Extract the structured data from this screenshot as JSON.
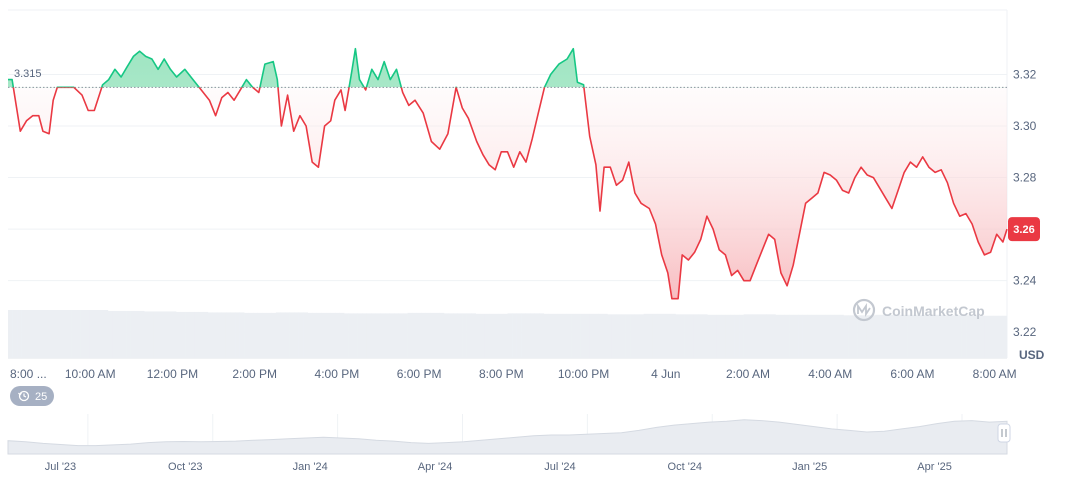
{
  "chart_data": {
    "type": "area",
    "title": "",
    "unit_label": "USD",
    "baseline": 3.315,
    "baseline_label": "3.315",
    "current_value": 3.26,
    "current_label": "3.26",
    "ylim": [
      3.21,
      3.345
    ],
    "y_ticks": [
      {
        "value": 3.32,
        "label": "3.32"
      },
      {
        "value": 3.3,
        "label": "3.30"
      },
      {
        "value": 3.28,
        "label": "3.28"
      },
      {
        "value": 3.26,
        "label": "3.26"
      },
      {
        "value": 3.24,
        "label": "3.24"
      },
      {
        "value": 3.22,
        "label": "3.22"
      }
    ],
    "x_range": [
      8,
      32.3
    ],
    "x_ticks": [
      {
        "value": 8,
        "label": "8:00 ..."
      },
      {
        "value": 10,
        "label": "10:00 AM"
      },
      {
        "value": 12,
        "label": "12:00 PM"
      },
      {
        "value": 14,
        "label": "2:00 PM"
      },
      {
        "value": 16,
        "label": "4:00 PM"
      },
      {
        "value": 18,
        "label": "6:00 PM"
      },
      {
        "value": 20,
        "label": "8:00 PM"
      },
      {
        "value": 22,
        "label": "10:00 PM"
      },
      {
        "value": 24,
        "label": "4 Jun"
      },
      {
        "value": 26,
        "label": "2:00 AM"
      },
      {
        "value": 28,
        "label": "4:00 AM"
      },
      {
        "value": 30,
        "label": "6:00 AM"
      },
      {
        "value": 32,
        "label": "8:00 AM"
      }
    ],
    "price_series": [
      [
        8.0,
        3.318
      ],
      [
        8.1,
        3.318
      ],
      [
        8.2,
        3.308
      ],
      [
        8.3,
        3.298
      ],
      [
        8.45,
        3.302
      ],
      [
        8.6,
        3.304
      ],
      [
        8.75,
        3.304
      ],
      [
        8.85,
        3.298
      ],
      [
        9.0,
        3.297
      ],
      [
        9.1,
        3.31
      ],
      [
        9.2,
        3.315
      ],
      [
        9.4,
        3.315
      ],
      [
        9.6,
        3.315
      ],
      [
        9.8,
        3.312
      ],
      [
        9.95,
        3.306
      ],
      [
        10.1,
        3.306
      ],
      [
        10.3,
        3.316
      ],
      [
        10.45,
        3.318
      ],
      [
        10.6,
        3.322
      ],
      [
        10.75,
        3.319
      ],
      [
        10.9,
        3.323
      ],
      [
        11.05,
        3.327
      ],
      [
        11.2,
        3.329
      ],
      [
        11.35,
        3.327
      ],
      [
        11.5,
        3.326
      ],
      [
        11.65,
        3.322
      ],
      [
        11.8,
        3.326
      ],
      [
        11.95,
        3.322
      ],
      [
        12.1,
        3.319
      ],
      [
        12.3,
        3.322
      ],
      [
        12.5,
        3.318
      ],
      [
        12.7,
        3.314
      ],
      [
        12.9,
        3.31
      ],
      [
        13.05,
        3.304
      ],
      [
        13.2,
        3.311
      ],
      [
        13.35,
        3.313
      ],
      [
        13.5,
        3.31
      ],
      [
        13.65,
        3.314
      ],
      [
        13.8,
        3.318
      ],
      [
        13.95,
        3.315
      ],
      [
        14.1,
        3.313
      ],
      [
        14.25,
        3.324
      ],
      [
        14.45,
        3.325
      ],
      [
        14.55,
        3.318
      ],
      [
        14.65,
        3.3
      ],
      [
        14.8,
        3.312
      ],
      [
        14.95,
        3.298
      ],
      [
        15.1,
        3.304
      ],
      [
        15.25,
        3.3
      ],
      [
        15.4,
        3.286
      ],
      [
        15.55,
        3.284
      ],
      [
        15.7,
        3.3
      ],
      [
        15.85,
        3.302
      ],
      [
        15.95,
        3.31
      ],
      [
        16.1,
        3.314
      ],
      [
        16.2,
        3.306
      ],
      [
        16.35,
        3.32
      ],
      [
        16.45,
        3.33
      ],
      [
        16.55,
        3.318
      ],
      [
        16.7,
        3.314
      ],
      [
        16.85,
        3.322
      ],
      [
        17.0,
        3.318
      ],
      [
        17.15,
        3.325
      ],
      [
        17.3,
        3.318
      ],
      [
        17.45,
        3.322
      ],
      [
        17.6,
        3.313
      ],
      [
        17.75,
        3.308
      ],
      [
        17.9,
        3.31
      ],
      [
        18.1,
        3.305
      ],
      [
        18.3,
        3.294
      ],
      [
        18.5,
        3.291
      ],
      [
        18.7,
        3.297
      ],
      [
        18.9,
        3.315
      ],
      [
        19.05,
        3.307
      ],
      [
        19.2,
        3.303
      ],
      [
        19.4,
        3.294
      ],
      [
        19.55,
        3.289
      ],
      [
        19.7,
        3.285
      ],
      [
        19.85,
        3.283
      ],
      [
        20.0,
        3.29
      ],
      [
        20.15,
        3.29
      ],
      [
        20.3,
        3.284
      ],
      [
        20.45,
        3.29
      ],
      [
        20.6,
        3.286
      ],
      [
        20.75,
        3.295
      ],
      [
        20.9,
        3.305
      ],
      [
        21.05,
        3.315
      ],
      [
        21.2,
        3.32
      ],
      [
        21.4,
        3.324
      ],
      [
        21.6,
        3.326
      ],
      [
        21.75,
        3.33
      ],
      [
        21.85,
        3.317
      ],
      [
        22.0,
        3.316
      ],
      [
        22.15,
        3.296
      ],
      [
        22.3,
        3.285
      ],
      [
        22.4,
        3.267
      ],
      [
        22.5,
        3.284
      ],
      [
        22.65,
        3.284
      ],
      [
        22.8,
        3.277
      ],
      [
        22.95,
        3.279
      ],
      [
        23.1,
        3.286
      ],
      [
        23.25,
        3.274
      ],
      [
        23.4,
        3.27
      ],
      [
        23.6,
        3.268
      ],
      [
        23.75,
        3.262
      ],
      [
        23.9,
        3.25
      ],
      [
        24.05,
        3.243
      ],
      [
        24.15,
        3.233
      ],
      [
        24.3,
        3.233
      ],
      [
        24.4,
        3.25
      ],
      [
        24.55,
        3.248
      ],
      [
        24.7,
        3.251
      ],
      [
        24.85,
        3.256
      ],
      [
        25.0,
        3.265
      ],
      [
        25.15,
        3.26
      ],
      [
        25.3,
        3.252
      ],
      [
        25.45,
        3.25
      ],
      [
        25.6,
        3.242
      ],
      [
        25.75,
        3.244
      ],
      [
        25.9,
        3.24
      ],
      [
        26.05,
        3.24
      ],
      [
        26.2,
        3.246
      ],
      [
        26.35,
        3.252
      ],
      [
        26.5,
        3.258
      ],
      [
        26.65,
        3.256
      ],
      [
        26.8,
        3.243
      ],
      [
        26.95,
        3.238
      ],
      [
        27.1,
        3.246
      ],
      [
        27.25,
        3.258
      ],
      [
        27.4,
        3.27
      ],
      [
        27.55,
        3.272
      ],
      [
        27.7,
        3.274
      ],
      [
        27.85,
        3.282
      ],
      [
        28.0,
        3.281
      ],
      [
        28.15,
        3.279
      ],
      [
        28.3,
        3.275
      ],
      [
        28.45,
        3.274
      ],
      [
        28.6,
        3.28
      ],
      [
        28.75,
        3.284
      ],
      [
        28.9,
        3.281
      ],
      [
        29.05,
        3.28
      ],
      [
        29.2,
        3.276
      ],
      [
        29.35,
        3.272
      ],
      [
        29.5,
        3.268
      ],
      [
        29.65,
        3.275
      ],
      [
        29.8,
        3.282
      ],
      [
        29.95,
        3.286
      ],
      [
        30.1,
        3.284
      ],
      [
        30.25,
        3.288
      ],
      [
        30.4,
        3.284
      ],
      [
        30.55,
        3.282
      ],
      [
        30.7,
        3.283
      ],
      [
        30.85,
        3.278
      ],
      [
        31.0,
        3.27
      ],
      [
        31.15,
        3.265
      ],
      [
        31.3,
        3.266
      ],
      [
        31.45,
        3.262
      ],
      [
        31.6,
        3.255
      ],
      [
        31.75,
        3.25
      ],
      [
        31.9,
        3.251
      ],
      [
        32.05,
        3.258
      ],
      [
        32.2,
        3.255
      ],
      [
        32.3,
        3.26
      ]
    ],
    "volume_series": [
      1,
      1,
      1,
      0.98,
      0.97,
      0.96,
      0.95,
      0.94,
      0.95,
      0.94,
      0.93,
      0.93,
      0.94,
      0.93,
      0.92,
      0.93,
      0.92,
      0.92,
      0.91,
      0.92,
      0.91,
      0.9,
      0.91,
      0.9,
      0.9,
      0.89,
      0.9,
      0.9,
      0.89,
      0.88
    ],
    "navigator": {
      "labels": [
        "Jul '23",
        "Oct '23",
        "Jan '24",
        "Apr '24",
        "Jul '24",
        "Oct '24",
        "Jan '25",
        "Apr '25"
      ],
      "series": [
        0.35,
        0.32,
        0.28,
        0.25,
        0.22,
        0.22,
        0.24,
        0.26,
        0.3,
        0.32,
        0.33,
        0.32,
        0.33,
        0.34,
        0.36,
        0.38,
        0.4,
        0.42,
        0.44,
        0.42,
        0.4,
        0.36,
        0.34,
        0.3,
        0.28,
        0.3,
        0.32,
        0.36,
        0.4,
        0.44,
        0.48,
        0.5,
        0.5,
        0.52,
        0.54,
        0.56,
        0.62,
        0.7,
        0.76,
        0.8,
        0.84,
        0.86,
        0.9,
        0.88,
        0.84,
        0.78,
        0.72,
        0.66,
        0.62,
        0.58,
        0.6,
        0.66,
        0.72,
        0.8,
        0.86,
        0.88,
        0.84,
        0.86
      ]
    },
    "colors": {
      "up": "#16c784",
      "up_fill": "#b6ecd2",
      "down": "#ea3943",
      "down_fill": "#fde3e4",
      "axis_text": "#58667e",
      "grid": "#eff2f5",
      "badge_bg": "#ea3943"
    }
  },
  "ui": {
    "logo_text": "CoinMarketCap",
    "logo_icon": "coinmarketcap-logo-icon",
    "zoom_badge_label": "25",
    "zoom_badge_icon": "history-icon",
    "handle_icon": "drag-handle-icon"
  }
}
